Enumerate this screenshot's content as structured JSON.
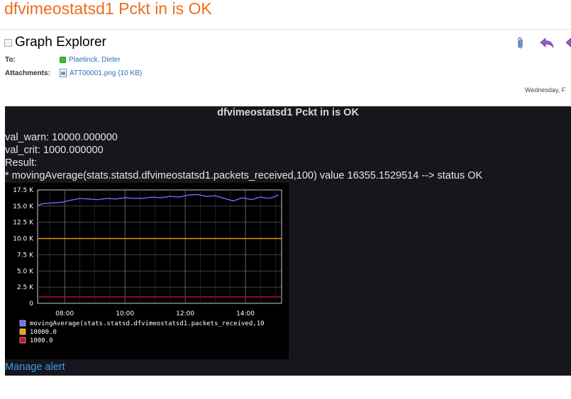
{
  "subject": "dfvimeostatsd1 Pckt in is OK",
  "viewer": {
    "title": "Graph Explorer"
  },
  "header": {
    "to_label": "To:",
    "to_value": "Plaetinck, Dieter",
    "attachments_label": "Attachments:",
    "attachment_value": "ATT00001.png (10 KB)",
    "date_text": "Wednesday, F"
  },
  "toolbar": {
    "icons": [
      "paperclip-icon",
      "reply-icon",
      "reply-all-icon"
    ]
  },
  "alert": {
    "title": "dfvimeostatsd1 Pckt in is OK",
    "val_warn": "val_warn: 10000.000000",
    "val_crit": "val_crit: 1000.000000",
    "result_label": "Result:",
    "result_line": "* movingAverage(stats.statsd.dfvimeostatsd1.packets_received,100) value 16355.1529514 --> status OK",
    "manage_link": "Manage alert"
  },
  "chart_data": {
    "type": "line",
    "y_ticks": [
      "17.5 K",
      "15.0 K",
      "12.5 K",
      "10.0 K",
      "7.5 K",
      "5.0 K",
      "2.5 K",
      "0"
    ],
    "x_ticks": [
      "08:00",
      "10:00",
      "12:00",
      "14:00"
    ],
    "ylim": [
      0,
      17500
    ],
    "x_hours_range": [
      7.1,
      15.2
    ],
    "grid": true,
    "legend_placement": "bottom",
    "series": [
      {
        "name": "movingAverage(stats.statsd.dfvimeostatsd1.packets_received,10",
        "color": "#6c6cff",
        "x": [
          7.1,
          7.3,
          7.6,
          7.9,
          8.2,
          8.5,
          8.8,
          9.1,
          9.4,
          9.7,
          10.0,
          10.3,
          10.6,
          10.9,
          11.2,
          11.5,
          11.8,
          12.1,
          12.4,
          12.7,
          13.0,
          13.3,
          13.6,
          13.9,
          14.2,
          14.5,
          14.8,
          15.1
        ],
        "y": [
          15100,
          15400,
          15500,
          15600,
          15900,
          16200,
          16100,
          16000,
          16200,
          16100,
          16300,
          16200,
          16200,
          16400,
          16300,
          16500,
          16400,
          16700,
          16800,
          16500,
          16600,
          16200,
          15800,
          16300,
          16000,
          16400,
          16200,
          16700
        ]
      },
      {
        "name": "10000.0",
        "color": "#f5a400",
        "x": [
          7.1,
          15.2
        ],
        "y": [
          10000,
          10000
        ]
      },
      {
        "name": "1000.0",
        "color": "#c8102e",
        "x": [
          7.1,
          15.2
        ],
        "y": [
          1000,
          1000
        ]
      }
    ]
  }
}
